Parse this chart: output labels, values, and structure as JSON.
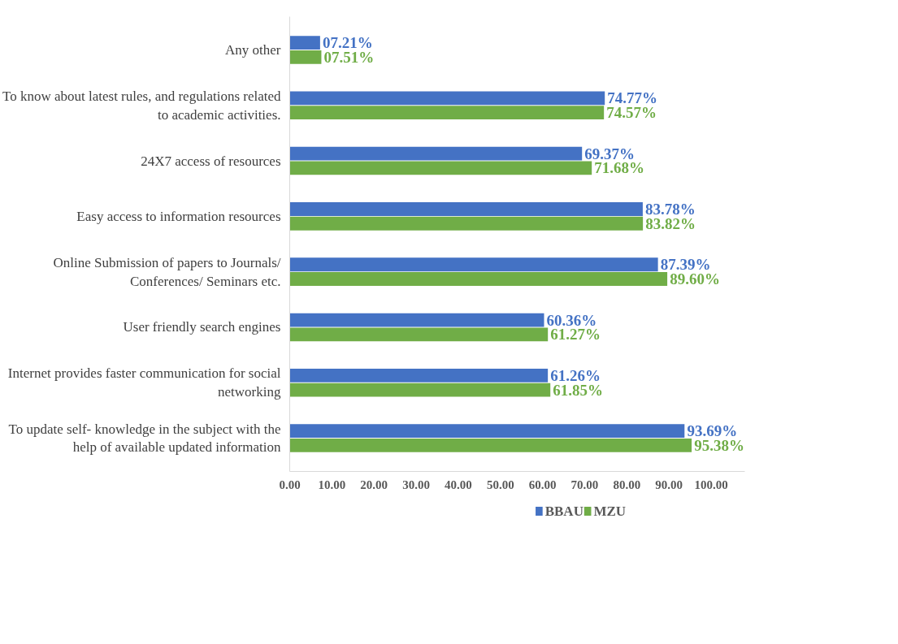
{
  "chart_data": {
    "type": "bar",
    "orientation": "horizontal",
    "categories": [
      "Any other",
      "To know about latest rules, and regulations related to academic activities.",
      "24X7 access of resources",
      "Easy access to information resources",
      "Online Submission of papers to Journals/ Conferences/ Seminars etc.",
      "User friendly search engines",
      "Internet provides faster communication for social networking",
      "To update self- knowledge in the subject with the help of available updated information"
    ],
    "series": [
      {
        "name": "BBAU",
        "color": "#4472c4",
        "values": [
          7.21,
          74.77,
          69.37,
          83.78,
          87.39,
          60.36,
          61.26,
          93.69
        ],
        "value_labels": [
          "07.21%",
          "74.77%",
          "69.37%",
          "83.78%",
          "87.39%",
          "60.36%",
          "61.26%",
          "93.69%"
        ]
      },
      {
        "name": "MZU",
        "color": "#70ad47",
        "values": [
          7.51,
          74.57,
          71.68,
          83.82,
          89.6,
          61.27,
          61.85,
          95.38
        ],
        "value_labels": [
          "07.51%",
          "74.57%",
          "71.68%",
          "83.82%",
          "89.60%",
          "61.27%",
          "61.85%",
          "95.38%"
        ]
      }
    ],
    "xlim": [
      0,
      108
    ],
    "xticks": [
      {
        "value": 0,
        "label": "0.00"
      },
      {
        "value": 10,
        "label": "10.00"
      },
      {
        "value": 20,
        "label": "20.00"
      },
      {
        "value": 30,
        "label": "30.00"
      },
      {
        "value": 40,
        "label": "40.00"
      },
      {
        "value": 50,
        "label": "50.00"
      },
      {
        "value": 60,
        "label": "60.00"
      },
      {
        "value": 70,
        "label": "70.00"
      },
      {
        "value": 80,
        "label": "80.00"
      },
      {
        "value": 90,
        "label": "90.00"
      },
      {
        "value": 100,
        "label": "100.00"
      }
    ],
    "grid": false,
    "legend": "bottom"
  }
}
